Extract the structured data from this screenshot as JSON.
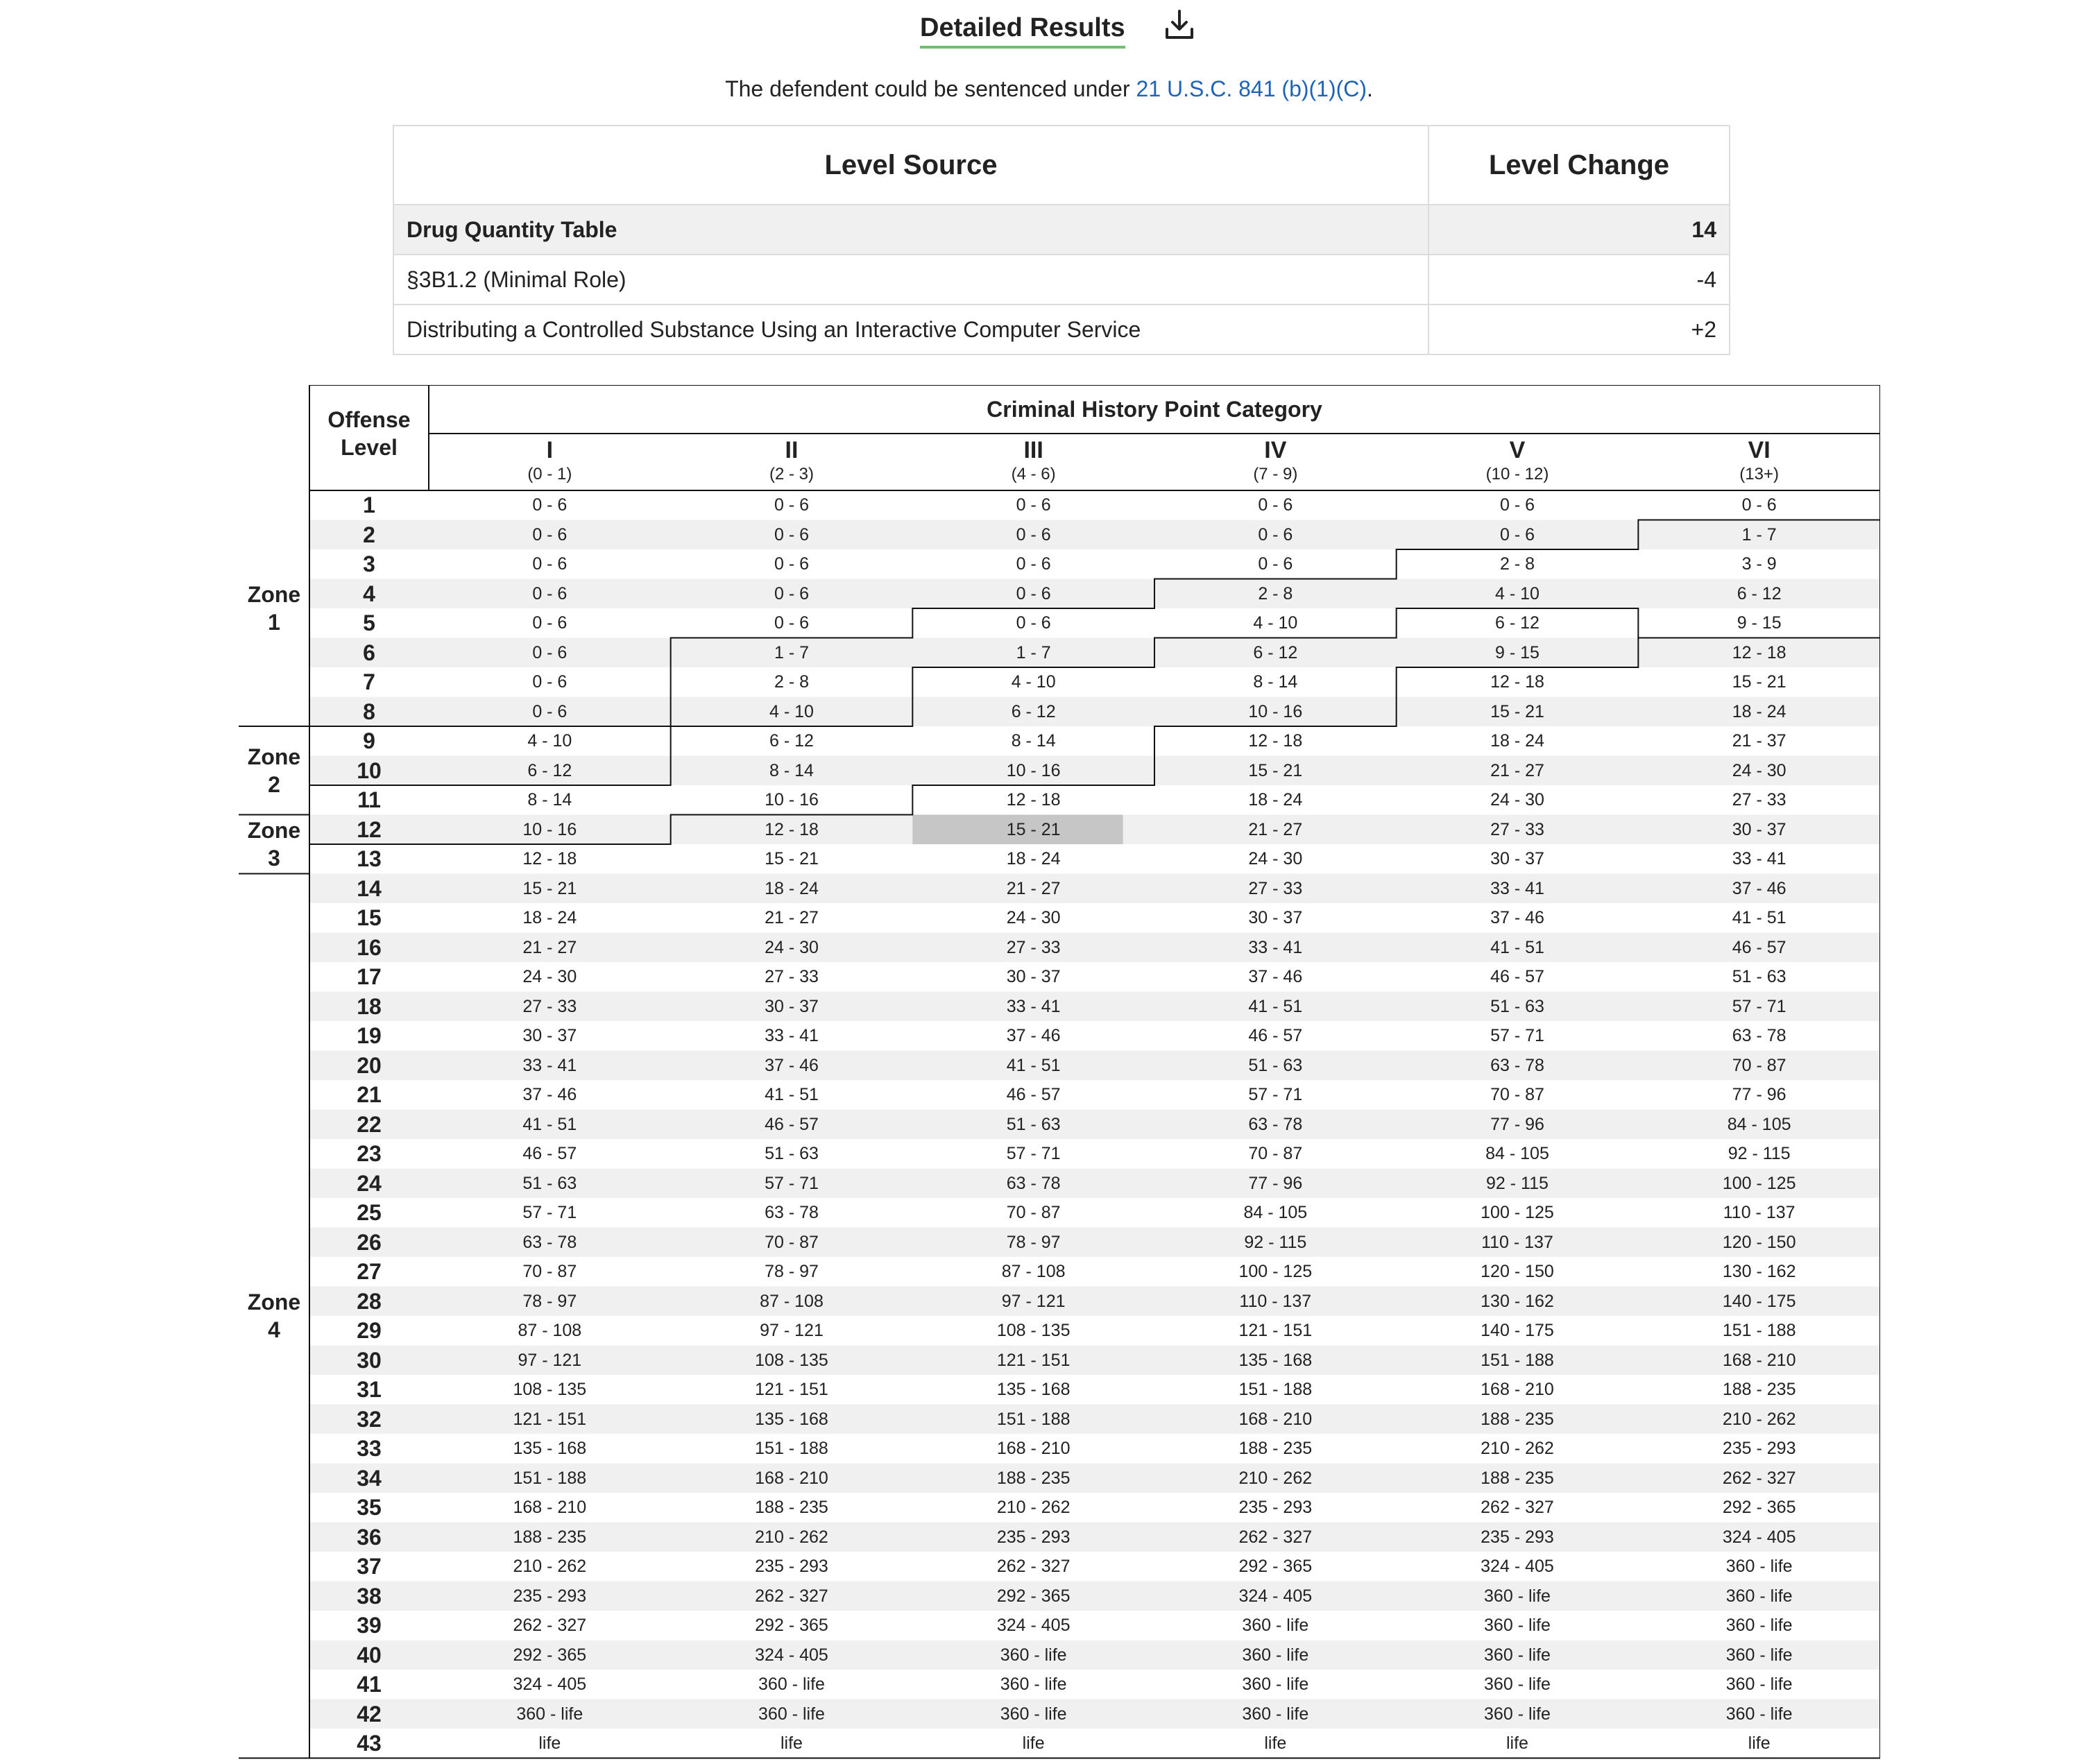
{
  "header": {
    "title": "Detailed Results",
    "download_icon": "download-icon",
    "intro_prefix": "The defendent could be sentenced under ",
    "statute_link": "21 U.S.C. 841 (b)(1)(C)",
    "intro_suffix": "."
  },
  "level_table": {
    "headers": [
      "Level Source",
      "Level Change"
    ],
    "rows": [
      {
        "source": "Drug Quantity Table",
        "change": "14",
        "bold": true
      },
      {
        "source": "§3B1.2 (Minimal Role)",
        "change": "-4",
        "bold": false
      },
      {
        "source": "Distributing a Controlled Substance Using an Interactive Computer Service",
        "change": "+2",
        "bold": false
      }
    ]
  },
  "grid": {
    "offense_header": [
      "Offense",
      "Level"
    ],
    "history_header": "Criminal History Point Category",
    "columns": [
      {
        "roman": "I",
        "range": "(0 - 1)"
      },
      {
        "roman": "II",
        "range": "(2 - 3)"
      },
      {
        "roman": "III",
        "range": "(4 - 6)"
      },
      {
        "roman": "IV",
        "range": "(7 - 9)"
      },
      {
        "roman": "V",
        "range": "(10 - 12)"
      },
      {
        "roman": "VI",
        "range": "(13+)"
      }
    ],
    "zones": [
      {
        "name": "Zone",
        "number": "1",
        "first_level": 1,
        "last_level": 8
      },
      {
        "name": "Zone",
        "number": "2",
        "first_level": 9,
        "last_level": 11
      },
      {
        "name": "Zone",
        "number": "3",
        "first_level": 12,
        "last_level": 13
      },
      {
        "name": "Zone",
        "number": "4",
        "first_level": 14,
        "last_level": 43
      }
    ],
    "highlight": {
      "level": 12,
      "column": "III"
    },
    "zone_row_limits": {
      "zone_1_last_level": [
        8,
        5,
        4,
        3,
        2,
        1
      ],
      "zone_2_last_level": [
        10,
        8,
        6,
        5,
        4,
        5
      ],
      "zone_3_last_level": [
        12,
        11,
        10,
        8,
        6,
        5
      ]
    },
    "rows": [
      {
        "level": "1",
        "cells": [
          "0 - 6",
          "0 - 6",
          "0 - 6",
          "0 - 6",
          "0 - 6",
          "0 - 6"
        ]
      },
      {
        "level": "2",
        "cells": [
          "0 - 6",
          "0 - 6",
          "0 - 6",
          "0 - 6",
          "0 - 6",
          "1 - 7"
        ]
      },
      {
        "level": "3",
        "cells": [
          "0 - 6",
          "0 - 6",
          "0 - 6",
          "0 - 6",
          "2 - 8",
          "3 - 9"
        ]
      },
      {
        "level": "4",
        "cells": [
          "0 - 6",
          "0 - 6",
          "0 - 6",
          "2 - 8",
          "4 - 10",
          "6 - 12"
        ]
      },
      {
        "level": "5",
        "cells": [
          "0 - 6",
          "0 - 6",
          "0 - 6",
          "4 - 10",
          "6 - 12",
          "9 - 15"
        ]
      },
      {
        "level": "6",
        "cells": [
          "0 - 6",
          "1 - 7",
          "1 - 7",
          "6 - 12",
          "9 - 15",
          "12 - 18"
        ]
      },
      {
        "level": "7",
        "cells": [
          "0 - 6",
          "2 - 8",
          "4 - 10",
          "8 - 14",
          "12 - 18",
          "15 - 21"
        ]
      },
      {
        "level": "8",
        "cells": [
          "0 - 6",
          "4 - 10",
          "6 - 12",
          "10 - 16",
          "15 - 21",
          "18 - 24"
        ]
      },
      {
        "level": "9",
        "cells": [
          "4 - 10",
          "6 - 12",
          "8 - 14",
          "12 - 18",
          "18 - 24",
          "21 - 37"
        ]
      },
      {
        "level": "10",
        "cells": [
          "6 - 12",
          "8 - 14",
          "10 - 16",
          "15 - 21",
          "21 - 27",
          "24 - 30"
        ]
      },
      {
        "level": "11",
        "cells": [
          "8 - 14",
          "10 - 16",
          "12 - 18",
          "18 - 24",
          "24 - 30",
          "27 - 33"
        ]
      },
      {
        "level": "12",
        "cells": [
          "10 - 16",
          "12 - 18",
          "15 - 21",
          "21 - 27",
          "27 - 33",
          "30 - 37"
        ]
      },
      {
        "level": "13",
        "cells": [
          "12 - 18",
          "15 - 21",
          "18 - 24",
          "24 - 30",
          "30 - 37",
          "33 - 41"
        ]
      },
      {
        "level": "14",
        "cells": [
          "15 - 21",
          "18 - 24",
          "21 - 27",
          "27 - 33",
          "33 - 41",
          "37 - 46"
        ]
      },
      {
        "level": "15",
        "cells": [
          "18 - 24",
          "21 - 27",
          "24 - 30",
          "30 - 37",
          "37 - 46",
          "41 - 51"
        ]
      },
      {
        "level": "16",
        "cells": [
          "21 - 27",
          "24 - 30",
          "27 - 33",
          "33 - 41",
          "41 - 51",
          "46 - 57"
        ]
      },
      {
        "level": "17",
        "cells": [
          "24 - 30",
          "27 - 33",
          "30 - 37",
          "37 - 46",
          "46 - 57",
          "51 - 63"
        ]
      },
      {
        "level": "18",
        "cells": [
          "27 - 33",
          "30 - 37",
          "33 - 41",
          "41 - 51",
          "51 - 63",
          "57 - 71"
        ]
      },
      {
        "level": "19",
        "cells": [
          "30 - 37",
          "33 - 41",
          "37 - 46",
          "46 - 57",
          "57 - 71",
          "63 - 78"
        ]
      },
      {
        "level": "20",
        "cells": [
          "33 - 41",
          "37 - 46",
          "41 - 51",
          "51 - 63",
          "63 - 78",
          "70 - 87"
        ]
      },
      {
        "level": "21",
        "cells": [
          "37 - 46",
          "41 - 51",
          "46 - 57",
          "57 - 71",
          "70 - 87",
          "77 - 96"
        ]
      },
      {
        "level": "22",
        "cells": [
          "41 - 51",
          "46 - 57",
          "51 - 63",
          "63 - 78",
          "77 - 96",
          "84 - 105"
        ]
      },
      {
        "level": "23",
        "cells": [
          "46 - 57",
          "51 - 63",
          "57 - 71",
          "70 - 87",
          "84 - 105",
          "92 - 115"
        ]
      },
      {
        "level": "24",
        "cells": [
          "51 - 63",
          "57 - 71",
          "63 - 78",
          "77 - 96",
          "92 - 115",
          "100 - 125"
        ]
      },
      {
        "level": "25",
        "cells": [
          "57 - 71",
          "63 - 78",
          "70 - 87",
          "84 - 105",
          "100 - 125",
          "110 - 137"
        ]
      },
      {
        "level": "26",
        "cells": [
          "63 - 78",
          "70 - 87",
          "78 - 97",
          "92 - 115",
          "110 - 137",
          "120 - 150"
        ]
      },
      {
        "level": "27",
        "cells": [
          "70 - 87",
          "78 - 97",
          "87 - 108",
          "100 - 125",
          "120 - 150",
          "130 - 162"
        ]
      },
      {
        "level": "28",
        "cells": [
          "78 - 97",
          "87 - 108",
          "97 - 121",
          "110 - 137",
          "130 - 162",
          "140 - 175"
        ]
      },
      {
        "level": "29",
        "cells": [
          "87 - 108",
          "97 - 121",
          "108 - 135",
          "121 - 151",
          "140 - 175",
          "151 - 188"
        ]
      },
      {
        "level": "30",
        "cells": [
          "97 - 121",
          "108 - 135",
          "121 - 151",
          "135 - 168",
          "151 - 188",
          "168 - 210"
        ]
      },
      {
        "level": "31",
        "cells": [
          "108 - 135",
          "121 - 151",
          "135 - 168",
          "151 - 188",
          "168 - 210",
          "188 - 235"
        ]
      },
      {
        "level": "32",
        "cells": [
          "121 - 151",
          "135 - 168",
          "151 - 188",
          "168 - 210",
          "188 - 235",
          "210 - 262"
        ]
      },
      {
        "level": "33",
        "cells": [
          "135 - 168",
          "151 - 188",
          "168 - 210",
          "188 - 235",
          "210 - 262",
          "235 - 293"
        ]
      },
      {
        "level": "34",
        "cells": [
          "151 - 188",
          "168 - 210",
          "188 - 235",
          "210 - 262",
          "188 - 235",
          "262 - 327"
        ]
      },
      {
        "level": "35",
        "cells": [
          "168 - 210",
          "188 - 235",
          "210 - 262",
          "235 - 293",
          "262 - 327",
          "292 - 365"
        ]
      },
      {
        "level": "36",
        "cells": [
          "188 - 235",
          "210 - 262",
          "235 - 293",
          "262 - 327",
          "235 - 293",
          "324 - 405"
        ]
      },
      {
        "level": "37",
        "cells": [
          "210 - 262",
          "235 - 293",
          "262 - 327",
          "292 - 365",
          "324 - 405",
          "360 - life"
        ]
      },
      {
        "level": "38",
        "cells": [
          "235 - 293",
          "262 - 327",
          "292 - 365",
          "324 - 405",
          "360 - life",
          "360 - life"
        ]
      },
      {
        "level": "39",
        "cells": [
          "262 - 327",
          "292 - 365",
          "324 - 405",
          "360 - life",
          "360 - life",
          "360 - life"
        ]
      },
      {
        "level": "40",
        "cells": [
          "292 - 365",
          "324 - 405",
          "360 - life",
          "360 - life",
          "360 - life",
          "360 - life"
        ]
      },
      {
        "level": "41",
        "cells": [
          "324 - 405",
          "360 - life",
          "360 - life",
          "360 - life",
          "360 - life",
          "360 - life"
        ]
      },
      {
        "level": "42",
        "cells": [
          "360 - life",
          "360 - life",
          "360 - life",
          "360 - life",
          "360 - life",
          "360 - life"
        ]
      },
      {
        "level": "43",
        "cells": [
          "life",
          "life",
          "life",
          "life",
          "life",
          "life"
        ]
      }
    ]
  }
}
